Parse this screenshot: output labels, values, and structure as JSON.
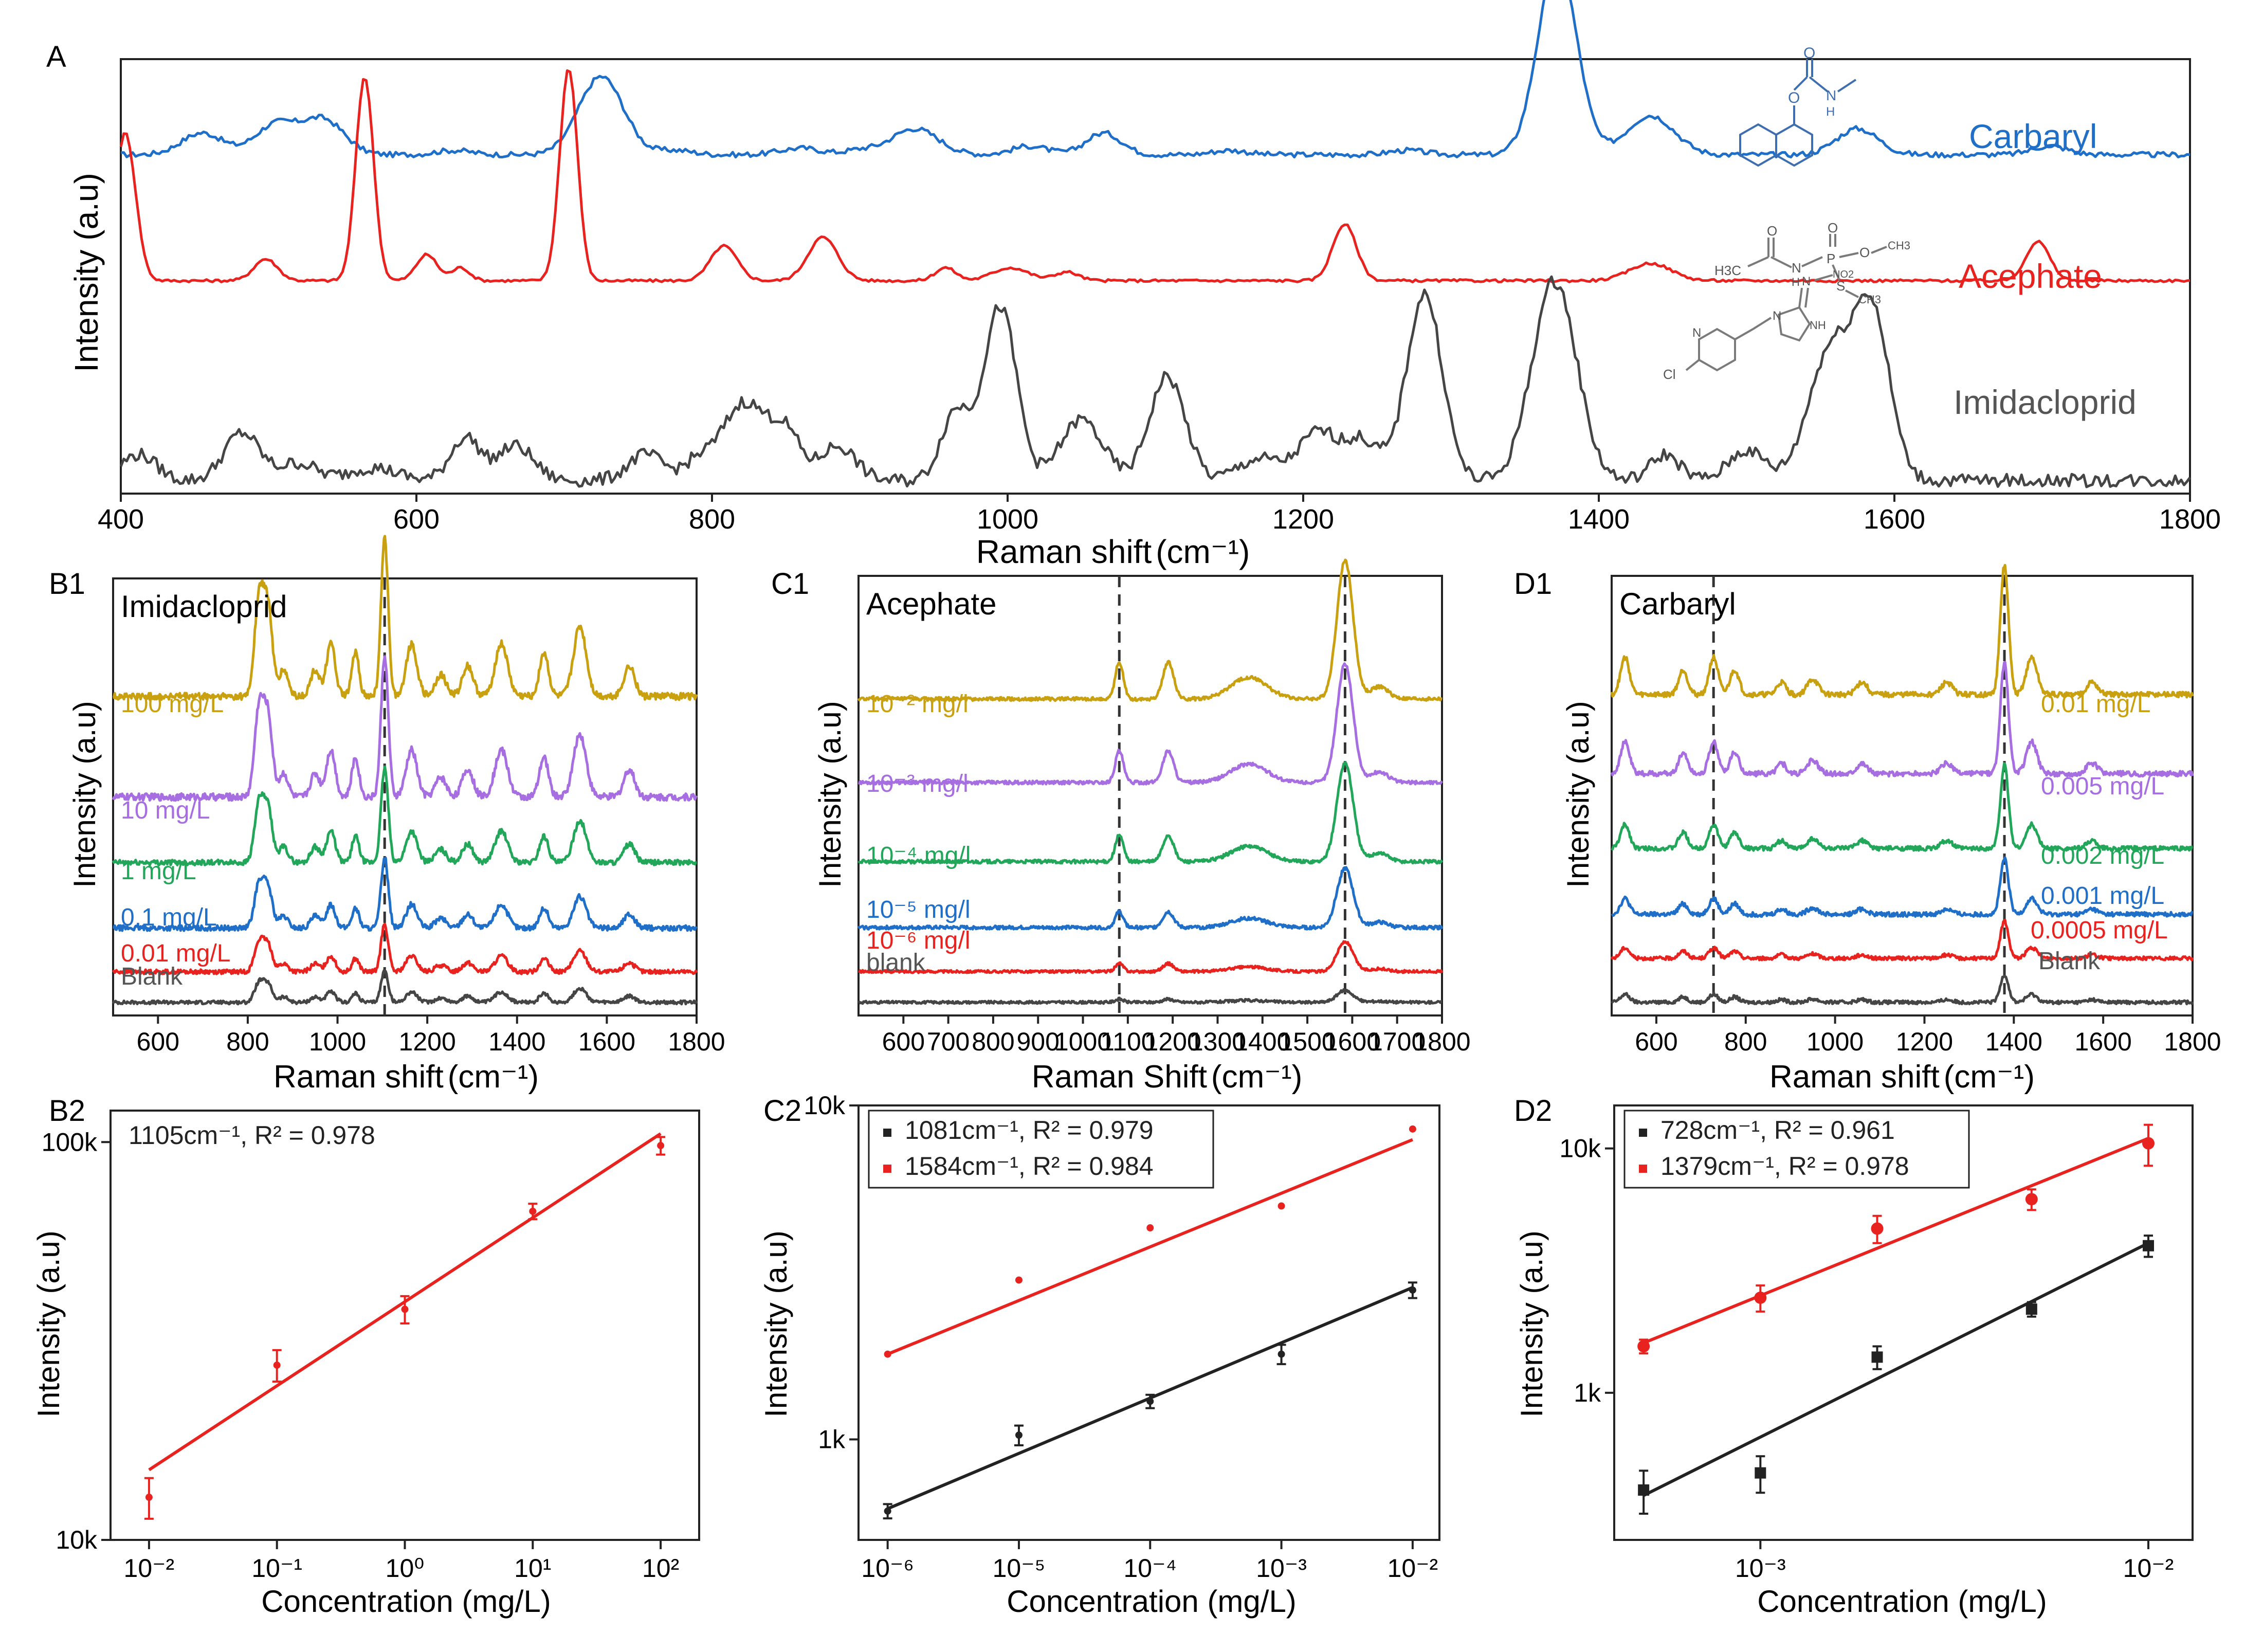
{
  "chart_data": [
    {
      "id": "A",
      "panel_label": "A",
      "type": "line",
      "title": "",
      "xlabel": "Raman shift",
      "xunit": "(cm⁻¹)",
      "ylabel": "Intensity (a.u)",
      "xlim": [
        400,
        1800
      ],
      "xticks": [
        400,
        600,
        800,
        1000,
        1200,
        1400,
        1600,
        1800
      ],
      "series": [
        {
          "name": "Carbaryl",
          "color": "#1f6fc9",
          "offset": 0.78,
          "baseline": [
            0.0,
            0.0
          ],
          "noise": 0.006,
          "peaks": [
            [
              455,
              0.05,
              14
            ],
            [
              505,
              0.07,
              14
            ],
            [
              537,
              0.08,
              14
            ],
            [
              625,
              0.01,
              12
            ],
            [
              725,
              0.18,
              15
            ],
            [
              775,
              0.01,
              12
            ],
            [
              860,
              0.015,
              14
            ],
            [
              900,
              0.01,
              10
            ],
            [
              937,
              0.06,
              16
            ],
            [
              1015,
              0.02,
              12
            ],
            [
              1065,
              0.05,
              12
            ],
            [
              1150,
              0.01,
              12
            ],
            [
              1270,
              0.01,
              12
            ],
            [
              1372,
              0.45,
              13
            ],
            [
              1435,
              0.09,
              16
            ],
            [
              1575,
              0.06,
              14
            ],
            [
              1705,
              0.02,
              12
            ]
          ]
        },
        {
          "name": "Acephate",
          "color": "#e8231f",
          "offset": 0.49,
          "baseline": [
            0.0,
            0.0
          ],
          "noise": 0.003,
          "peaks": [
            [
              403,
              0.34,
              7
            ],
            [
              498,
              0.05,
              8
            ],
            [
              565,
              0.47,
              6
            ],
            [
              607,
              0.06,
              7
            ],
            [
              630,
              0.03,
              6
            ],
            [
              703,
              0.49,
              6
            ],
            [
              808,
              0.08,
              9
            ],
            [
              875,
              0.1,
              10
            ],
            [
              958,
              0.03,
              7
            ],
            [
              1002,
              0.03,
              12
            ],
            [
              1040,
              0.02,
              8
            ],
            [
              1228,
              0.13,
              8
            ],
            [
              1435,
              0.04,
              14
            ],
            [
              1697,
              0.09,
              8
            ]
          ]
        },
        {
          "name": "Imidacloprid",
          "color": "#454545",
          "offset": 0.03,
          "baseline": [
            0.0,
            0.0
          ],
          "noise": 0.015,
          "peaks": [
            [
              412,
              0.06,
              12
            ],
            [
              482,
              0.11,
              12
            ],
            [
              520,
              0.04,
              12
            ],
            [
              570,
              0.03,
              16
            ],
            [
              633,
              0.1,
              10
            ],
            [
              667,
              0.08,
              12
            ],
            [
              755,
              0.06,
              12
            ],
            [
              790,
              0.04,
              10
            ],
            [
              822,
              0.18,
              15
            ],
            [
              850,
              0.1,
              10
            ],
            [
              885,
              0.08,
              12
            ],
            [
              965,
              0.16,
              10
            ],
            [
              995,
              0.4,
              11
            ],
            [
              1050,
              0.14,
              14
            ],
            [
              1108,
              0.24,
              12
            ],
            [
              1170,
              0.05,
              14
            ],
            [
              1210,
              0.11,
              13
            ],
            [
              1240,
              0.09,
              12
            ],
            [
              1282,
              0.43,
              12
            ],
            [
              1370,
              0.46,
              15
            ],
            [
              1445,
              0.06,
              10
            ],
            [
              1500,
              0.07,
              12
            ],
            [
              1557,
              0.3,
              15
            ],
            [
              1585,
              0.37,
              12
            ]
          ]
        }
      ],
      "annotations": [
        "Carbaryl",
        "Acephate",
        "Imidacloprid"
      ]
    },
    {
      "id": "B1",
      "panel_label": "B1",
      "type": "line",
      "title": "Imidacloprid",
      "xlabel": "Raman shift",
      "xunit": "(cm⁻¹)",
      "ylabel": "Intensity (a.u)",
      "xlim": [
        500,
        1800
      ],
      "xticks": [
        600,
        800,
        1000,
        1200,
        1400,
        1600,
        1800
      ],
      "dashed_lines_x": [
        1105
      ],
      "series": [
        {
          "name": "Blank",
          "color": "#454545",
          "offset": 0.03,
          "scale": 0.2,
          "noise": 0.004
        },
        {
          "name": "0.01 mg/L",
          "color": "#e8231f",
          "offset": 0.1,
          "scale": 0.3,
          "noise": 0.005
        },
        {
          "name": "0.1 mg/L",
          "color": "#1f6fc9",
          "offset": 0.2,
          "scale": 0.45,
          "noise": 0.006
        },
        {
          "name": "1 mg/L",
          "color": "#22a65a",
          "offset": 0.35,
          "scale": 0.6,
          "noise": 0.006
        },
        {
          "name": "10 mg/L",
          "color": "#a66ee0",
          "offset": 0.5,
          "scale": 0.9,
          "noise": 0.008
        },
        {
          "name": "100 mg/L",
          "color": "#c9a010",
          "offset": 0.73,
          "scale": 1.0,
          "noise": 0.008
        }
      ],
      "shape": [
        [
          825,
          0.22,
          10
        ],
        [
          845,
          0.2,
          10
        ],
        [
          880,
          0.06,
          10
        ],
        [
          950,
          0.06,
          10
        ],
        [
          985,
          0.12,
          10
        ],
        [
          1040,
          0.1,
          8
        ],
        [
          1105,
          0.36,
          8
        ],
        [
          1165,
          0.12,
          12
        ],
        [
          1230,
          0.05,
          12
        ],
        [
          1290,
          0.07,
          12
        ],
        [
          1365,
          0.12,
          14
        ],
        [
          1460,
          0.1,
          10
        ],
        [
          1540,
          0.16,
          14
        ],
        [
          1650,
          0.07,
          12
        ]
      ],
      "annotations": [
        "100 mg/L",
        "10 mg/L",
        "1 mg/L",
        "0.1 mg/L",
        "0.01 mg/L",
        "Blank"
      ]
    },
    {
      "id": "C1",
      "panel_label": "C1",
      "type": "line",
      "title": "Acephate",
      "xlabel": "Raman Shift",
      "xunit": "(cm⁻¹)",
      "ylabel": "Intensity (a.u)",
      "xlim": [
        500,
        1800
      ],
      "xticks": [
        600,
        700,
        800,
        900,
        1000,
        1100,
        1200,
        1300,
        1400,
        1500,
        1600,
        1700,
        1800
      ],
      "dashed_lines_x": [
        1081,
        1584
      ],
      "series": [
        {
          "name": "blank",
          "color": "#454545",
          "offset": 0.03,
          "scale": 0.06,
          "noise": 0.003
        },
        {
          "name": "10⁻⁶ mg/l",
          "color": "#e8231f",
          "offset": 0.1,
          "scale": 0.15,
          "noise": 0.003
        },
        {
          "name": "10⁻⁵ mg/l",
          "color": "#1f6fc9",
          "offset": 0.2,
          "scale": 0.3,
          "noise": 0.004
        },
        {
          "name": "10⁻⁴ mg/l",
          "color": "#22a65a",
          "offset": 0.35,
          "scale": 0.5,
          "noise": 0.004
        },
        {
          "name": "10⁻³ mg/l",
          "color": "#a66ee0",
          "offset": 0.53,
          "scale": 0.6,
          "noise": 0.004
        },
        {
          "name": "10⁻² mg/l",
          "color": "#c9a010",
          "offset": 0.72,
          "scale": 0.7,
          "noise": 0.004
        }
      ],
      "shape": [
        [
          1081,
          0.12,
          9
        ],
        [
          1190,
          0.12,
          12
        ],
        [
          1370,
          0.07,
          40
        ],
        [
          1584,
          0.45,
          18
        ],
        [
          1660,
          0.04,
          20
        ]
      ],
      "annotations": [
        "10⁻² mg/l",
        "10⁻³ mg/l",
        "10⁻⁴ mg/l",
        "10⁻⁵ mg/l",
        "10⁻⁶ mg/l",
        "blank"
      ]
    },
    {
      "id": "D1",
      "panel_label": "D1",
      "type": "line",
      "title": "Carbaryl",
      "xlabel": "Raman shift",
      "xunit": "(cm⁻¹)",
      "ylabel": "Intensity (a.u)",
      "xlim": [
        500,
        1800
      ],
      "xticks": [
        600,
        800,
        1000,
        1200,
        1400,
        1600,
        1800
      ],
      "dashed_lines_x": [
        728,
        1379
      ],
      "series": [
        {
          "name": "Blank",
          "color": "#454545",
          "offset": 0.03,
          "scale": 0.15,
          "noise": 0.004
        },
        {
          "name": "0.0005 mg/L",
          "color": "#e8231f",
          "offset": 0.13,
          "scale": 0.2,
          "noise": 0.004
        },
        {
          "name": "0.001 mg/L",
          "color": "#1f6fc9",
          "offset": 0.23,
          "scale": 0.3,
          "noise": 0.005
        },
        {
          "name": "0.002 mg/L",
          "color": "#22a65a",
          "offset": 0.38,
          "scale": 0.45,
          "noise": 0.005
        },
        {
          "name": "0.005 mg/L",
          "color": "#a66ee0",
          "offset": 0.55,
          "scale": 0.6,
          "noise": 0.006
        },
        {
          "name": "0.01 mg/L",
          "color": "#c9a010",
          "offset": 0.73,
          "scale": 0.7,
          "noise": 0.006
        }
      ],
      "shape": [
        [
          530,
          0.12,
          10
        ],
        [
          660,
          0.08,
          10
        ],
        [
          728,
          0.12,
          10
        ],
        [
          775,
          0.08,
          10
        ],
        [
          880,
          0.04,
          10
        ],
        [
          950,
          0.05,
          12
        ],
        [
          1060,
          0.04,
          12
        ],
        [
          1250,
          0.04,
          12
        ],
        [
          1379,
          0.42,
          9
        ],
        [
          1440,
          0.12,
          12
        ],
        [
          1575,
          0.04,
          12
        ]
      ],
      "annotations": [
        "0.01 mg/L",
        "0.005 mg/L",
        "0.002 mg/L",
        "0.001 mg/L",
        "0.0005 mg/L",
        "Blank"
      ]
    },
    {
      "id": "B2",
      "panel_label": "B2",
      "type": "scatter",
      "xscale": "log",
      "yscale": "log",
      "xlabel": "Concentration (mg/L)",
      "ylabel": "Intensity (a.u)",
      "xlim": [
        0.005,
        200
      ],
      "ylim": [
        10000,
        120000
      ],
      "xticks": [
        0.01,
        0.1,
        1,
        10,
        100
      ],
      "xticklabels": [
        "10⁻²",
        "10⁻¹",
        "10⁰",
        "10¹",
        "10²"
      ],
      "yticks": [
        10000,
        100000
      ],
      "yticklabels": [
        "10k",
        "100k"
      ],
      "legend": [
        {
          "text": "1105cm⁻¹, R² = 0.978",
          "color": "#e8231f"
        }
      ],
      "series": [
        {
          "name": "1105 cm-1",
          "color": "#e8231f",
          "marker": "point",
          "x": [
            0.01,
            0.1,
            1,
            10,
            100
          ],
          "y": [
            12800,
            27500,
            38000,
            67000,
            98000
          ],
          "err": [
            1500,
            2500,
            3000,
            3000,
            5000
          ],
          "fit": {
            "x": [
              0.01,
              100
            ],
            "y": [
              15000,
              105000
            ]
          }
        }
      ]
    },
    {
      "id": "C2",
      "panel_label": "C2",
      "type": "scatter",
      "xscale": "log",
      "yscale": "log",
      "xlabel": "Concentration (mg/L)",
      "ylabel": "Intensity (a.u)",
      "xlim": [
        6e-07,
        0.016
      ],
      "ylim": [
        500,
        10000
      ],
      "xticks": [
        1e-06,
        1e-05,
        0.0001,
        0.001,
        0.01
      ],
      "xticklabels": [
        "10⁻⁶",
        "10⁻⁵",
        "10⁻⁴",
        "10⁻³",
        "10⁻²"
      ],
      "yticks": [
        1000,
        10000
      ],
      "yticklabels": [
        "1k",
        "10k"
      ],
      "legend": [
        {
          "text": "1081cm⁻¹, R² = 0.979",
          "color": "#222222"
        },
        {
          "text": "1584cm⁻¹, R² = 0.984",
          "color": "#e8231f"
        }
      ],
      "series": [
        {
          "name": "1081 cm-1",
          "color": "#222222",
          "marker": "point",
          "x": [
            1e-06,
            1e-05,
            0.0001,
            0.001,
            0.01
          ],
          "y": [
            610,
            1030,
            1300,
            1800,
            2800
          ],
          "err": [
            30,
            70,
            60,
            120,
            150
          ],
          "fit": {
            "x": [
              1e-06,
              0.01
            ],
            "y": [
              620,
              2850
            ]
          }
        },
        {
          "name": "1584 cm-1",
          "color": "#e8231f",
          "marker": "point",
          "x": [
            1e-06,
            1e-05,
            0.0001,
            0.001,
            0.01
          ],
          "y": [
            1800,
            3000,
            4300,
            5000,
            8500
          ],
          "err": [
            0,
            0,
            0,
            0,
            0
          ],
          "fit": {
            "x": [
              1e-06,
              0.01
            ],
            "y": [
              1800,
              7900
            ]
          }
        }
      ]
    },
    {
      "id": "D2",
      "panel_label": "D2",
      "type": "scatter",
      "xscale": "log",
      "yscale": "log",
      "xlabel": "Concentration (mg/L)",
      "ylabel": "Intensity (a.u)",
      "xlim": [
        0.00042,
        0.013
      ],
      "ylim": [
        250,
        15000
      ],
      "xticks": [
        0.001,
        0.01
      ],
      "xticklabels": [
        "10⁻³",
        "10⁻²"
      ],
      "yticks": [
        1000,
        10000
      ],
      "yticklabels": [
        "1k",
        "10k"
      ],
      "legend": [
        {
          "text": "728cm⁻¹, R² = 0.961",
          "color": "#222222"
        },
        {
          "text": "1379cm⁻¹, R² = 0.978",
          "color": "#e8231f"
        }
      ],
      "series": [
        {
          "name": "728 cm-1",
          "color": "#222222",
          "marker": "square",
          "x": [
            0.0005,
            0.001,
            0.002,
            0.005,
            0.01
          ],
          "y": [
            400,
            470,
            1400,
            2200,
            4000
          ],
          "err": [
            80,
            80,
            150,
            150,
            400
          ],
          "fit": {
            "x": [
              0.0005,
              0.01
            ],
            "y": [
              380,
              4100
            ]
          }
        },
        {
          "name": "1379 cm-1",
          "color": "#e8231f",
          "marker": "circle",
          "x": [
            0.0005,
            0.001,
            0.002,
            0.005,
            0.01
          ],
          "y": [
            1550,
            2450,
            4700,
            6200,
            10500
          ],
          "err": [
            100,
            300,
            600,
            600,
            2000
          ],
          "fit": {
            "x": [
              0.0005,
              0.01
            ],
            "y": [
              1600,
              11000
            ]
          }
        }
      ]
    }
  ]
}
